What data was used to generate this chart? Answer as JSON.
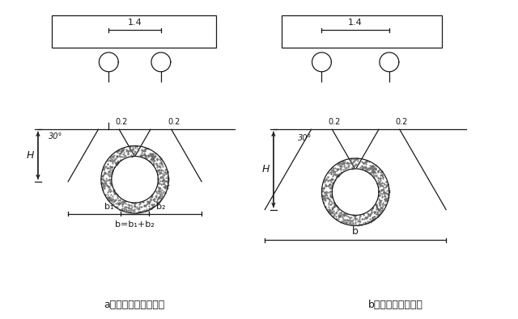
{
  "fig_width": 6.4,
  "fig_height": 3.95,
  "dpi": 100,
  "bg_color": "#ffffff",
  "line_color": "#1a1a1a",
  "caption_a": "a）压力扇散线不重叠",
  "caption_b": "b）压力扇散线重叠",
  "label_14": "1.4",
  "label_H": "H",
  "label_30": "30°",
  "label_02": "0.2",
  "label_b1": "b₁",
  "label_b2": "b₂",
  "label_b1b2": "b=b₁+b₂",
  "label_b": "b",
  "lw": 0.9
}
